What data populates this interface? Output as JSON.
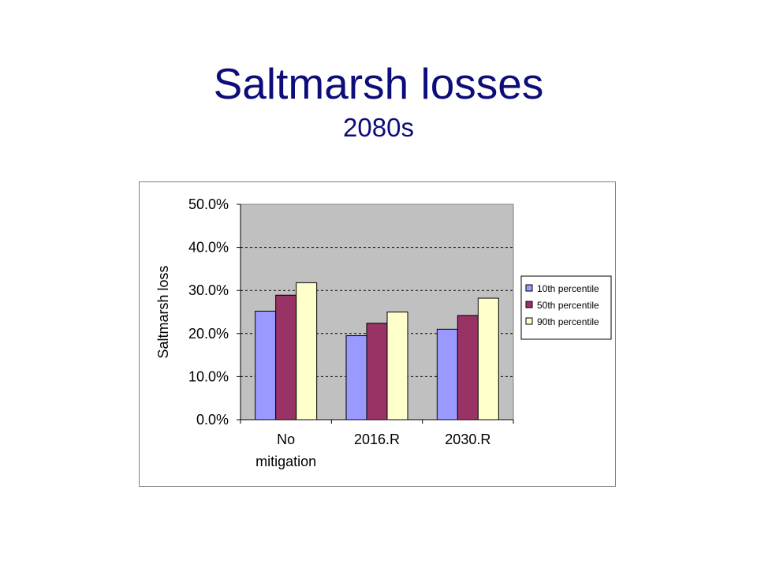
{
  "slide": {
    "title": "Saltmarsh losses",
    "subtitle": "2080s"
  },
  "chart_data": {
    "type": "bar",
    "categories": [
      [
        "No",
        "mitigation"
      ],
      [
        "2016.R"
      ],
      [
        "2030.R"
      ]
    ],
    "series": [
      {
        "name": "10th percentile",
        "values": [
          25.2,
          19.5,
          21.0
        ],
        "color": "#9999ff"
      },
      {
        "name": "50th percentile",
        "values": [
          28.9,
          22.4,
          24.2
        ],
        "color": "#993366"
      },
      {
        "name": "90th percentile",
        "values": [
          31.8,
          25.0,
          28.2
        ],
        "color": "#ffffcc"
      }
    ],
    "ylabel": "Saltmarsh loss",
    "ylim": [
      0,
      50
    ],
    "yticks": [
      "0.0%",
      "10.0%",
      "20.0%",
      "30.0%",
      "40.0%",
      "50.0%"
    ],
    "ytick_values": [
      0,
      10,
      20,
      30,
      40,
      50
    ],
    "plot_background": "#c0c0c0",
    "grid": true,
    "legend_position": "right"
  }
}
